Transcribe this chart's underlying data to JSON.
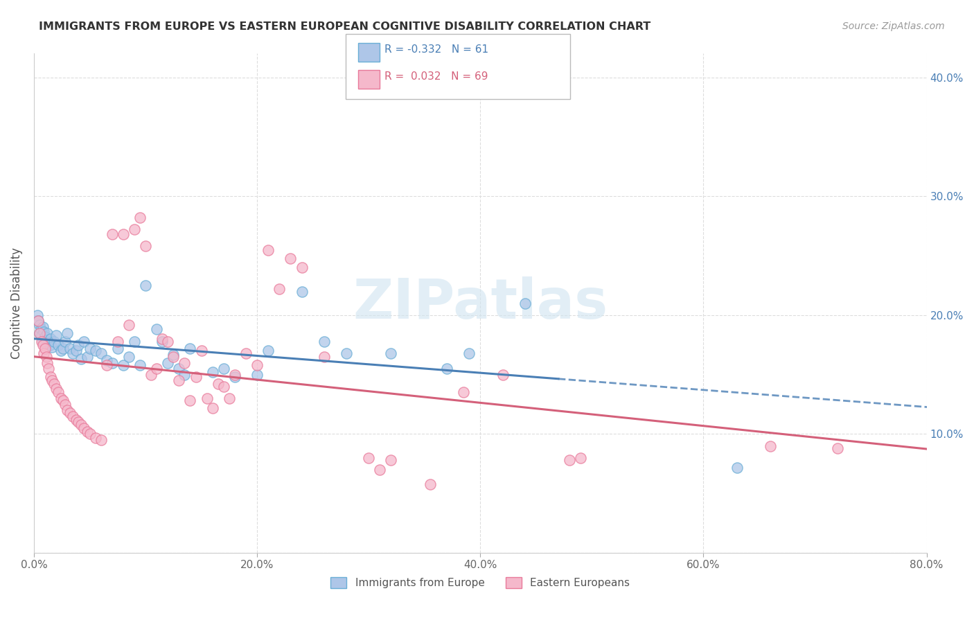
{
  "title": "IMMIGRANTS FROM EUROPE VS EASTERN EUROPEAN COGNITIVE DISABILITY CORRELATION CHART",
  "source": "Source: ZipAtlas.com",
  "ylabel": "Cognitive Disability",
  "xlim": [
    0.0,
    0.8
  ],
  "ylim": [
    0.0,
    0.42
  ],
  "yticks": [
    0.1,
    0.2,
    0.3,
    0.4
  ],
  "xticks": [
    0.0,
    0.2,
    0.4,
    0.6,
    0.8
  ],
  "legend_bottom_label1": "Immigrants from Europe",
  "legend_bottom_label2": "Eastern Europeans",
  "blue_fill": "#aec6e8",
  "pink_fill": "#f5b8cb",
  "blue_edge": "#6aaed6",
  "pink_edge": "#e87a9a",
  "blue_line_color": "#4a7fb5",
  "pink_line_color": "#d4607a",
  "blue_R": "-0.332",
  "blue_N": "61",
  "pink_R": "0.032",
  "pink_N": "69",
  "watermark_text": "ZIPatlas",
  "blue_scatter": [
    [
      0.003,
      0.2
    ],
    [
      0.004,
      0.195
    ],
    [
      0.005,
      0.192
    ],
    [
      0.005,
      0.185
    ],
    [
      0.006,
      0.188
    ],
    [
      0.007,
      0.183
    ],
    [
      0.008,
      0.19
    ],
    [
      0.008,
      0.178
    ],
    [
      0.009,
      0.186
    ],
    [
      0.01,
      0.182
    ],
    [
      0.011,
      0.179
    ],
    [
      0.012,
      0.185
    ],
    [
      0.013,
      0.177
    ],
    [
      0.014,
      0.175
    ],
    [
      0.015,
      0.18
    ],
    [
      0.016,
      0.173
    ],
    [
      0.018,
      0.178
    ],
    [
      0.02,
      0.183
    ],
    [
      0.022,
      0.175
    ],
    [
      0.024,
      0.17
    ],
    [
      0.026,
      0.172
    ],
    [
      0.028,
      0.178
    ],
    [
      0.03,
      0.185
    ],
    [
      0.032,
      0.172
    ],
    [
      0.035,
      0.168
    ],
    [
      0.038,
      0.17
    ],
    [
      0.04,
      0.175
    ],
    [
      0.042,
      0.163
    ],
    [
      0.045,
      0.178
    ],
    [
      0.048,
      0.165
    ],
    [
      0.05,
      0.172
    ],
    [
      0.055,
      0.17
    ],
    [
      0.06,
      0.168
    ],
    [
      0.065,
      0.162
    ],
    [
      0.07,
      0.16
    ],
    [
      0.075,
      0.172
    ],
    [
      0.08,
      0.158
    ],
    [
      0.085,
      0.165
    ],
    [
      0.09,
      0.178
    ],
    [
      0.095,
      0.158
    ],
    [
      0.1,
      0.225
    ],
    [
      0.11,
      0.188
    ],
    [
      0.115,
      0.178
    ],
    [
      0.12,
      0.16
    ],
    [
      0.125,
      0.167
    ],
    [
      0.13,
      0.155
    ],
    [
      0.135,
      0.15
    ],
    [
      0.14,
      0.172
    ],
    [
      0.16,
      0.152
    ],
    [
      0.17,
      0.155
    ],
    [
      0.18,
      0.148
    ],
    [
      0.2,
      0.15
    ],
    [
      0.21,
      0.17
    ],
    [
      0.24,
      0.22
    ],
    [
      0.26,
      0.178
    ],
    [
      0.28,
      0.168
    ],
    [
      0.32,
      0.168
    ],
    [
      0.37,
      0.155
    ],
    [
      0.39,
      0.168
    ],
    [
      0.44,
      0.21
    ],
    [
      0.63,
      0.072
    ]
  ],
  "pink_scatter": [
    [
      0.004,
      0.195
    ],
    [
      0.005,
      0.185
    ],
    [
      0.007,
      0.178
    ],
    [
      0.008,
      0.175
    ],
    [
      0.009,
      0.168
    ],
    [
      0.01,
      0.172
    ],
    [
      0.011,
      0.165
    ],
    [
      0.012,
      0.16
    ],
    [
      0.013,
      0.155
    ],
    [
      0.015,
      0.148
    ],
    [
      0.016,
      0.145
    ],
    [
      0.018,
      0.142
    ],
    [
      0.02,
      0.138
    ],
    [
      0.022,
      0.135
    ],
    [
      0.024,
      0.13
    ],
    [
      0.026,
      0.128
    ],
    [
      0.028,
      0.125
    ],
    [
      0.03,
      0.12
    ],
    [
      0.032,
      0.118
    ],
    [
      0.035,
      0.115
    ],
    [
      0.038,
      0.112
    ],
    [
      0.04,
      0.11
    ],
    [
      0.042,
      0.108
    ],
    [
      0.045,
      0.105
    ],
    [
      0.048,
      0.102
    ],
    [
      0.05,
      0.1
    ],
    [
      0.055,
      0.097
    ],
    [
      0.06,
      0.095
    ],
    [
      0.065,
      0.158
    ],
    [
      0.07,
      0.268
    ],
    [
      0.075,
      0.178
    ],
    [
      0.08,
      0.268
    ],
    [
      0.085,
      0.192
    ],
    [
      0.09,
      0.272
    ],
    [
      0.095,
      0.282
    ],
    [
      0.1,
      0.258
    ],
    [
      0.105,
      0.15
    ],
    [
      0.11,
      0.155
    ],
    [
      0.115,
      0.18
    ],
    [
      0.12,
      0.178
    ],
    [
      0.125,
      0.165
    ],
    [
      0.13,
      0.145
    ],
    [
      0.135,
      0.16
    ],
    [
      0.14,
      0.128
    ],
    [
      0.145,
      0.148
    ],
    [
      0.15,
      0.17
    ],
    [
      0.155,
      0.13
    ],
    [
      0.16,
      0.122
    ],
    [
      0.165,
      0.142
    ],
    [
      0.17,
      0.14
    ],
    [
      0.175,
      0.13
    ],
    [
      0.18,
      0.15
    ],
    [
      0.19,
      0.168
    ],
    [
      0.2,
      0.158
    ],
    [
      0.21,
      0.255
    ],
    [
      0.22,
      0.222
    ],
    [
      0.23,
      0.248
    ],
    [
      0.24,
      0.24
    ],
    [
      0.26,
      0.165
    ],
    [
      0.3,
      0.08
    ],
    [
      0.31,
      0.07
    ],
    [
      0.32,
      0.078
    ],
    [
      0.355,
      0.058
    ],
    [
      0.385,
      0.135
    ],
    [
      0.42,
      0.15
    ],
    [
      0.48,
      0.078
    ],
    [
      0.49,
      0.08
    ],
    [
      0.66,
      0.09
    ],
    [
      0.72,
      0.088
    ]
  ]
}
